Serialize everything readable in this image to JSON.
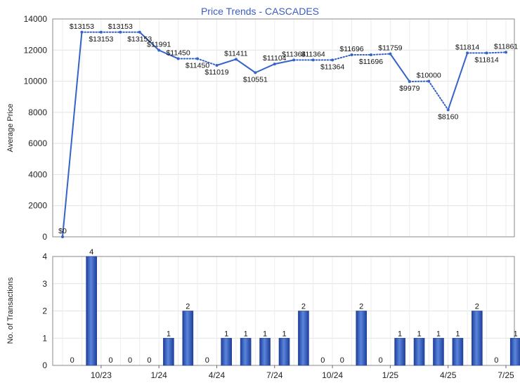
{
  "chart_data": [
    {
      "type": "line",
      "title": "Price Trends - CASCADES",
      "xlabel": "",
      "ylabel": "Average Price",
      "ylim": [
        0,
        14000
      ],
      "yticks": [
        0,
        2000,
        4000,
        6000,
        8000,
        10000,
        12000,
        14000
      ],
      "grid": true,
      "color": "#3563c8",
      "series": [
        {
          "values": [
            0,
            13153,
            13153,
            13153,
            13153,
            11991,
            11450,
            11450,
            11019,
            11411,
            10551,
            11104,
            11364,
            11364,
            11364,
            11696,
            11696,
            11759,
            9979,
            10000,
            8160,
            11814,
            11814,
            11861
          ],
          "labels": [
            "$0",
            "$13153",
            "$13153",
            "$13153",
            "$13153",
            "$11991",
            "$11450",
            "$11450",
            "$11019",
            "$11411",
            "$10551",
            "$11104",
            "$11364",
            "$11364",
            "$11364",
            "$11696",
            "$11696",
            "$11759",
            "$9979",
            "$10000",
            "$8160",
            "$11814",
            "$11814",
            "$11861"
          ],
          "interpolated": [
            false,
            false,
            true,
            true,
            false,
            false,
            false,
            true,
            false,
            false,
            false,
            false,
            false,
            true,
            true,
            false,
            true,
            false,
            false,
            true,
            false,
            false,
            true,
            false
          ]
        }
      ]
    },
    {
      "type": "bar",
      "title": "",
      "xlabel": "",
      "ylabel": "No. of Transactions",
      "ylim": [
        0,
        4
      ],
      "yticks": [
        0,
        1,
        2,
        3,
        4
      ],
      "grid": true,
      "color": "#3563c8",
      "x_tick_labels": [
        "10/23",
        "1/24",
        "4/24",
        "7/24",
        "10/24",
        "1/25",
        "4/25",
        "7/25"
      ],
      "series": [
        {
          "values": [
            0,
            4,
            0,
            0,
            0,
            1,
            2,
            0,
            1,
            1,
            1,
            1,
            2,
            0,
            0,
            2,
            0,
            1,
            1,
            1,
            1,
            2,
            0,
            1
          ]
        }
      ]
    }
  ]
}
